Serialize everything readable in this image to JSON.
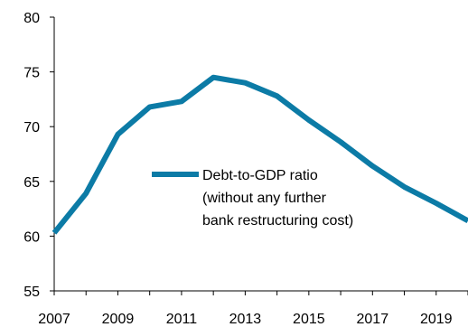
{
  "chart_data": {
    "type": "line",
    "title": "",
    "xlabel": "",
    "ylabel": "",
    "x": [
      2007,
      2008,
      2009,
      2010,
      2011,
      2012,
      2013,
      2014,
      2015,
      2016,
      2017,
      2018,
      2019,
      2020
    ],
    "x_tick_labels": [
      "2007",
      "2009",
      "2011",
      "2013",
      "2015",
      "2017",
      "2019"
    ],
    "y_tick_labels": [
      "55",
      "60",
      "65",
      "70",
      "75",
      "80"
    ],
    "ylim": [
      55,
      80
    ],
    "xlim": [
      2007,
      2020
    ],
    "grid": false,
    "legend_position": "center",
    "series": [
      {
        "name": "Debt-to-GDP ratio (without any further bank restructuring cost)",
        "legend_lines": [
          "Debt-to-GDP ratio",
          "(without any further",
          "bank restructuring cost)"
        ],
        "color": "#0C7BA6",
        "values": [
          60.3,
          63.9,
          69.3,
          71.8,
          72.3,
          74.5,
          74.0,
          72.8,
          70.6,
          68.6,
          66.4,
          64.5,
          63.0,
          61.4
        ]
      }
    ]
  }
}
